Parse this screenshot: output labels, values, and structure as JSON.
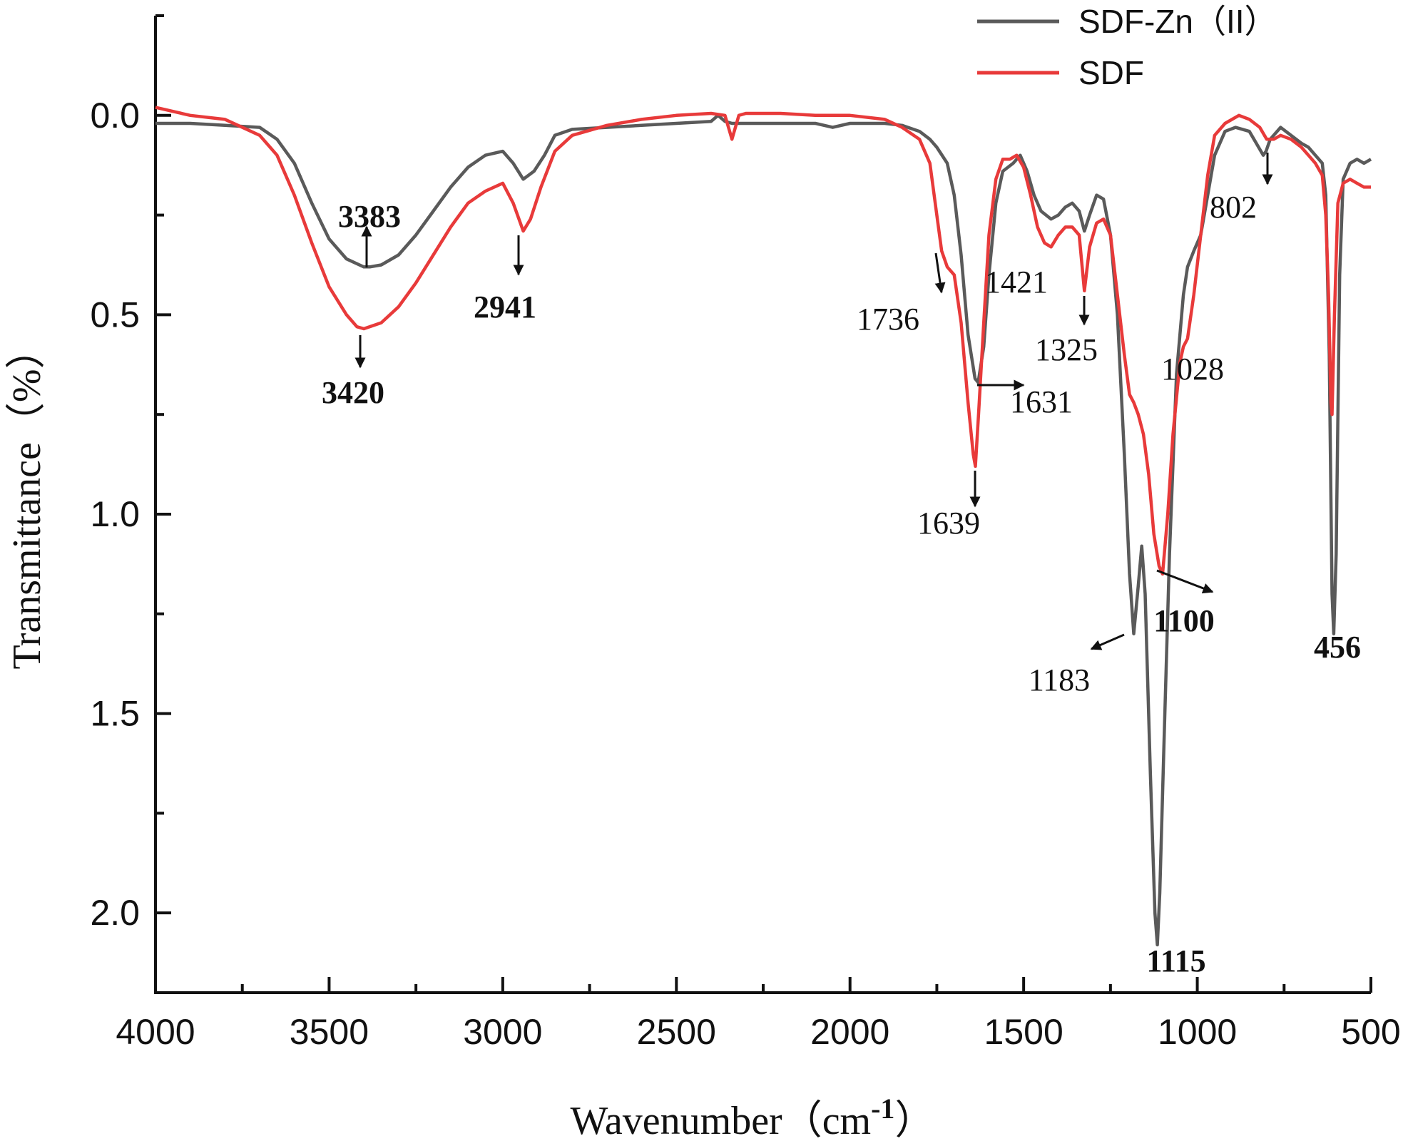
{
  "chart_data": {
    "type": "line",
    "xlabel": "Wavenumber（cm",
    "xlabel_sup": "-1",
    "xlabel_close": "）",
    "ylabel": "Transmittance（%）",
    "xlim": [
      4000,
      500
    ],
    "ylim": [
      -0.25,
      2.2
    ],
    "y_reversed": true,
    "x_ticks": [
      4000,
      3500,
      3000,
      2500,
      2000,
      1500,
      1000,
      500
    ],
    "x_tick_labels": [
      "4000",
      "3500",
      "3000",
      "2500",
      "2000",
      "1500",
      "1000",
      "500"
    ],
    "y_ticks": [
      0.0,
      0.5,
      1.0,
      1.5,
      2.0
    ],
    "y_tick_labels": [
      "0.0",
      "0.5",
      "1.0",
      "1.5",
      "2.0"
    ],
    "grid": false,
    "legend_position": "top-right",
    "series": [
      {
        "name": "SDF-Zn（II）",
        "color": "#5a5a5a",
        "points": [
          [
            4000,
            0.02
          ],
          [
            3900,
            0.02
          ],
          [
            3800,
            0.025
          ],
          [
            3700,
            0.03
          ],
          [
            3650,
            0.06
          ],
          [
            3600,
            0.12
          ],
          [
            3550,
            0.22
          ],
          [
            3500,
            0.31
          ],
          [
            3450,
            0.36
          ],
          [
            3400,
            0.38
          ],
          [
            3383,
            0.38
          ],
          [
            3350,
            0.375
          ],
          [
            3300,
            0.35
          ],
          [
            3250,
            0.3
          ],
          [
            3200,
            0.24
          ],
          [
            3150,
            0.18
          ],
          [
            3100,
            0.13
          ],
          [
            3050,
            0.1
          ],
          [
            3000,
            0.09
          ],
          [
            2970,
            0.12
          ],
          [
            2941,
            0.16
          ],
          [
            2910,
            0.14
          ],
          [
            2880,
            0.1
          ],
          [
            2850,
            0.05
          ],
          [
            2800,
            0.035
          ],
          [
            2700,
            0.03
          ],
          [
            2600,
            0.025
          ],
          [
            2500,
            0.02
          ],
          [
            2400,
            0.015
          ],
          [
            2380,
            0.0
          ],
          [
            2360,
            0.015
          ],
          [
            2340,
            0.02
          ],
          [
            2300,
            0.02
          ],
          [
            2200,
            0.02
          ],
          [
            2100,
            0.02
          ],
          [
            2050,
            0.03
          ],
          [
            2000,
            0.02
          ],
          [
            1900,
            0.02
          ],
          [
            1850,
            0.025
          ],
          [
            1800,
            0.04
          ],
          [
            1770,
            0.06
          ],
          [
            1750,
            0.08
          ],
          [
            1720,
            0.12
          ],
          [
            1700,
            0.2
          ],
          [
            1680,
            0.35
          ],
          [
            1660,
            0.55
          ],
          [
            1640,
            0.66
          ],
          [
            1631,
            0.67
          ],
          [
            1615,
            0.58
          ],
          [
            1600,
            0.4
          ],
          [
            1580,
            0.22
          ],
          [
            1560,
            0.14
          ],
          [
            1530,
            0.12
          ],
          [
            1510,
            0.1
          ],
          [
            1490,
            0.14
          ],
          [
            1470,
            0.2
          ],
          [
            1450,
            0.24
          ],
          [
            1421,
            0.26
          ],
          [
            1400,
            0.25
          ],
          [
            1380,
            0.23
          ],
          [
            1360,
            0.22
          ],
          [
            1340,
            0.24
          ],
          [
            1325,
            0.29
          ],
          [
            1310,
            0.25
          ],
          [
            1290,
            0.2
          ],
          [
            1270,
            0.21
          ],
          [
            1250,
            0.3
          ],
          [
            1230,
            0.5
          ],
          [
            1210,
            0.85
          ],
          [
            1195,
            1.15
          ],
          [
            1183,
            1.3
          ],
          [
            1170,
            1.18
          ],
          [
            1160,
            1.08
          ],
          [
            1150,
            1.2
          ],
          [
            1135,
            1.65
          ],
          [
            1122,
            2.0
          ],
          [
            1115,
            2.08
          ],
          [
            1108,
            1.95
          ],
          [
            1095,
            1.55
          ],
          [
            1080,
            1.1
          ],
          [
            1060,
            0.65
          ],
          [
            1040,
            0.45
          ],
          [
            1028,
            0.38
          ],
          [
            1010,
            0.34
          ],
          [
            990,
            0.3
          ],
          [
            970,
            0.2
          ],
          [
            950,
            0.1
          ],
          [
            920,
            0.04
          ],
          [
            890,
            0.03
          ],
          [
            850,
            0.04
          ],
          [
            830,
            0.07
          ],
          [
            810,
            0.1
          ],
          [
            802,
            0.09
          ],
          [
            790,
            0.06
          ],
          [
            760,
            0.03
          ],
          [
            730,
            0.05
          ],
          [
            700,
            0.07
          ],
          [
            680,
            0.08
          ],
          [
            660,
            0.1
          ],
          [
            640,
            0.12
          ],
          [
            630,
            0.2
          ],
          [
            620,
            0.6
          ],
          [
            612,
            1.2
          ],
          [
            607,
            1.3
          ],
          [
            600,
            1.1
          ],
          [
            590,
            0.4
          ],
          [
            580,
            0.16
          ],
          [
            560,
            0.12
          ],
          [
            540,
            0.11
          ],
          [
            520,
            0.12
          ],
          [
            500,
            0.11
          ]
        ]
      },
      {
        "name": "SDF",
        "color": "#e83a3a",
        "points": [
          [
            4000,
            -0.02
          ],
          [
            3900,
            0.0
          ],
          [
            3800,
            0.01
          ],
          [
            3750,
            0.03
          ],
          [
            3700,
            0.05
          ],
          [
            3650,
            0.1
          ],
          [
            3600,
            0.2
          ],
          [
            3550,
            0.32
          ],
          [
            3500,
            0.43
          ],
          [
            3450,
            0.5
          ],
          [
            3420,
            0.53
          ],
          [
            3400,
            0.535
          ],
          [
            3350,
            0.52
          ],
          [
            3300,
            0.48
          ],
          [
            3250,
            0.42
          ],
          [
            3200,
            0.35
          ],
          [
            3150,
            0.28
          ],
          [
            3100,
            0.22
          ],
          [
            3050,
            0.19
          ],
          [
            3000,
            0.17
          ],
          [
            2970,
            0.22
          ],
          [
            2941,
            0.29
          ],
          [
            2920,
            0.26
          ],
          [
            2890,
            0.18
          ],
          [
            2850,
            0.09
          ],
          [
            2800,
            0.05
          ],
          [
            2700,
            0.025
          ],
          [
            2600,
            0.01
          ],
          [
            2500,
            0.0
          ],
          [
            2400,
            -0.005
          ],
          [
            2360,
            0.0
          ],
          [
            2340,
            0.06
          ],
          [
            2320,
            0.0
          ],
          [
            2300,
            -0.005
          ],
          [
            2200,
            -0.005
          ],
          [
            2100,
            0.0
          ],
          [
            2000,
            0.0
          ],
          [
            1900,
            0.01
          ],
          [
            1850,
            0.03
          ],
          [
            1800,
            0.06
          ],
          [
            1770,
            0.12
          ],
          [
            1750,
            0.25
          ],
          [
            1736,
            0.34
          ],
          [
            1720,
            0.38
          ],
          [
            1700,
            0.4
          ],
          [
            1680,
            0.52
          ],
          [
            1660,
            0.72
          ],
          [
            1645,
            0.85
          ],
          [
            1639,
            0.88
          ],
          [
            1630,
            0.75
          ],
          [
            1615,
            0.52
          ],
          [
            1600,
            0.3
          ],
          [
            1580,
            0.16
          ],
          [
            1560,
            0.11
          ],
          [
            1540,
            0.11
          ],
          [
            1520,
            0.1
          ],
          [
            1500,
            0.13
          ],
          [
            1480,
            0.2
          ],
          [
            1460,
            0.28
          ],
          [
            1440,
            0.32
          ],
          [
            1421,
            0.33
          ],
          [
            1400,
            0.3
          ],
          [
            1380,
            0.28
          ],
          [
            1360,
            0.28
          ],
          [
            1340,
            0.3
          ],
          [
            1325,
            0.44
          ],
          [
            1310,
            0.33
          ],
          [
            1290,
            0.27
          ],
          [
            1270,
            0.26
          ],
          [
            1250,
            0.3
          ],
          [
            1230,
            0.45
          ],
          [
            1210,
            0.6
          ],
          [
            1195,
            0.7
          ],
          [
            1183,
            0.72
          ],
          [
            1170,
            0.75
          ],
          [
            1155,
            0.8
          ],
          [
            1140,
            0.9
          ],
          [
            1125,
            1.05
          ],
          [
            1110,
            1.13
          ],
          [
            1100,
            1.15
          ],
          [
            1085,
            1.0
          ],
          [
            1070,
            0.8
          ],
          [
            1050,
            0.62
          ],
          [
            1040,
            0.58
          ],
          [
            1028,
            0.56
          ],
          [
            1010,
            0.45
          ],
          [
            990,
            0.3
          ],
          [
            970,
            0.15
          ],
          [
            950,
            0.05
          ],
          [
            920,
            0.02
          ],
          [
            880,
            0.0
          ],
          [
            850,
            0.01
          ],
          [
            820,
            0.03
          ],
          [
            800,
            0.06
          ],
          [
            780,
            0.06
          ],
          [
            760,
            0.05
          ],
          [
            730,
            0.06
          ],
          [
            700,
            0.08
          ],
          [
            680,
            0.1
          ],
          [
            660,
            0.12
          ],
          [
            640,
            0.15
          ],
          [
            630,
            0.25
          ],
          [
            622,
            0.45
          ],
          [
            615,
            0.72
          ],
          [
            612,
            0.75
          ],
          [
            605,
            0.5
          ],
          [
            595,
            0.22
          ],
          [
            580,
            0.17
          ],
          [
            560,
            0.16
          ],
          [
            540,
            0.17
          ],
          [
            520,
            0.18
          ],
          [
            500,
            0.18
          ]
        ]
      }
    ],
    "annotations": [
      {
        "label": "3383",
        "bold": true
      },
      {
        "label": "2941",
        "bold": true
      },
      {
        "label": "3420",
        "bold": true
      },
      {
        "label": "1736",
        "bold": false
      },
      {
        "label": "1421",
        "bold": false
      },
      {
        "label": "1325",
        "bold": false
      },
      {
        "label": "1631",
        "bold": false
      },
      {
        "label": "1639",
        "bold": false
      },
      {
        "label": "1028",
        "bold": false
      },
      {
        "label": "802",
        "bold": false
      },
      {
        "label": "1100",
        "bold": true
      },
      {
        "label": "1183",
        "bold": false
      },
      {
        "label": "456",
        "bold": true
      },
      {
        "label": "1115",
        "bold": true
      }
    ]
  }
}
